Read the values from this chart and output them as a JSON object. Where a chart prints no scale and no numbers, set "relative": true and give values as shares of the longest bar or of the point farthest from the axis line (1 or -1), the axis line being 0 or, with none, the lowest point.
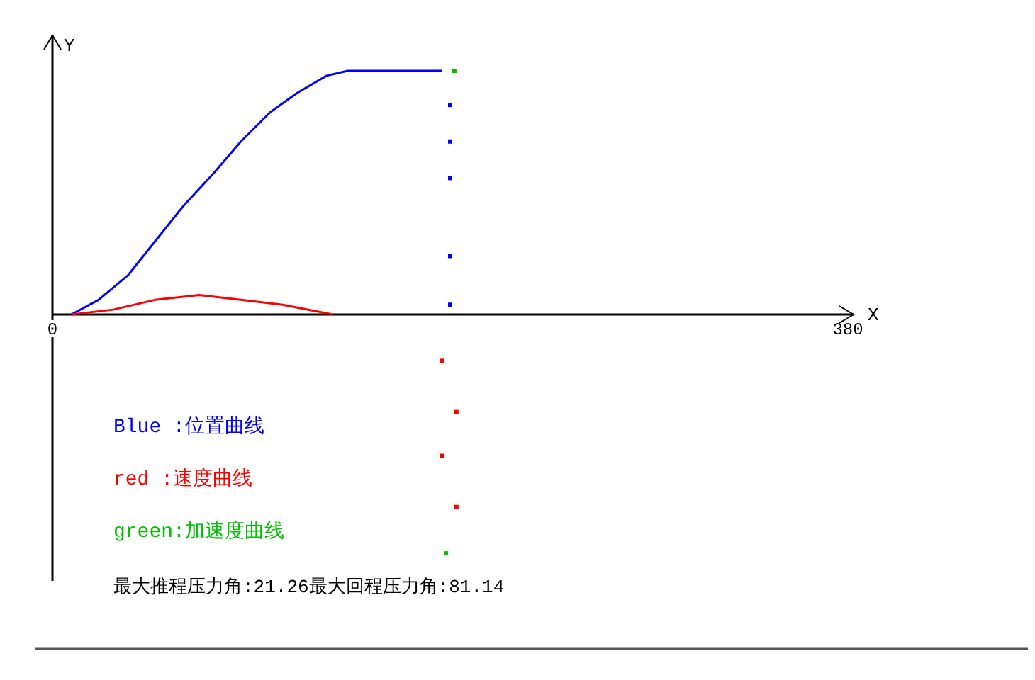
{
  "chart_data": {
    "type": "line",
    "relative": true,
    "xlabel": "X",
    "ylabel": "Y",
    "xlim": [
      0,
      380
    ],
    "xticks": [
      0,
      380
    ],
    "legend": "bottom left",
    "series": [
      {
        "name": "Blue :位置曲线",
        "color": "#0000ff",
        "type": "line",
        "x": [
          9,
          22,
          36,
          49,
          63,
          77,
          90,
          104,
          117,
          131,
          141,
          186
        ],
        "values": [
          0,
          0.06,
          0.16,
          0.3,
          0.45,
          0.58,
          0.71,
          0.83,
          0.91,
          0.98,
          1,
          1
        ]
      },
      {
        "name": "red  :速度曲线",
        "color": "#ff0000",
        "type": "line",
        "x": [
          9,
          29,
          49,
          70,
          90,
          110,
          134
        ],
        "values": [
          0,
          0.02,
          0.06,
          0.08,
          0.06,
          0.04,
          0
        ]
      },
      {
        "name": "green:加速度曲线",
        "color": "#00c000",
        "type": "scatter",
        "marker": "square",
        "x": [
          192,
          188
        ],
        "values": [
          1,
          -0.98
        ]
      },
      {
        "color": "#0000ff",
        "type": "scatter",
        "marker": "square",
        "x": [
          190,
          190,
          190,
          190,
          190
        ],
        "values": [
          0.86,
          0.71,
          0.56,
          0.24,
          0.04
        ]
      },
      {
        "color": "#ff0000",
        "type": "scatter",
        "marker": "square",
        "x": [
          186,
          193,
          186,
          193
        ],
        "values": [
          -0.19,
          -0.4,
          -0.58,
          -0.79
        ]
      }
    ],
    "annotations": [
      "最大推程压力角:21.26最大回程压力角:81.14"
    ]
  }
}
